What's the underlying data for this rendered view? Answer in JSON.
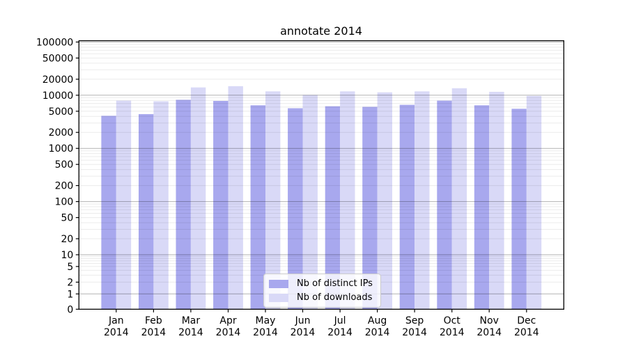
{
  "chart_data": {
    "type": "bar",
    "title": "annotate 2014",
    "year": "2014",
    "months": [
      "Jan",
      "Feb",
      "Mar",
      "Apr",
      "May",
      "Jun",
      "Jul",
      "Aug",
      "Sep",
      "Oct",
      "Nov",
      "Dec"
    ],
    "categories": [
      "Jan 2014",
      "Feb 2014",
      "Mar 2014",
      "Apr 2014",
      "May 2014",
      "Jun 2014",
      "Jul 2014",
      "Aug 2014",
      "Sep 2014",
      "Oct 2014",
      "Nov 2014",
      "Dec 2014"
    ],
    "series": [
      {
        "name": "Nb of distinct IPs",
        "color": "#a8a8ee",
        "values": [
          4100,
          4400,
          8200,
          7800,
          6450,
          5700,
          6200,
          6050,
          6600,
          7900,
          6450,
          5550
        ]
      },
      {
        "name": "Nb of downloads",
        "color": "#d9d9f7",
        "values": [
          7900,
          7700,
          14000,
          14800,
          11800,
          10100,
          11800,
          11300,
          11800,
          13500,
          11600,
          9700
        ]
      }
    ],
    "y_ticks": [
      0,
      1,
      2,
      5,
      10,
      20,
      50,
      100,
      200,
      500,
      1000,
      2000,
      5000,
      10000,
      20000,
      50000,
      100000
    ],
    "y_scale": "symlog",
    "ylim": [
      0,
      100000
    ],
    "grid": true,
    "legend_position": "lower center",
    "colors": {
      "major_grid": "rgba(0,0,0,0.30)",
      "minor_grid": "rgba(0,0,0,0.08)",
      "axis": "#000000",
      "background": "#ffffff"
    }
  }
}
